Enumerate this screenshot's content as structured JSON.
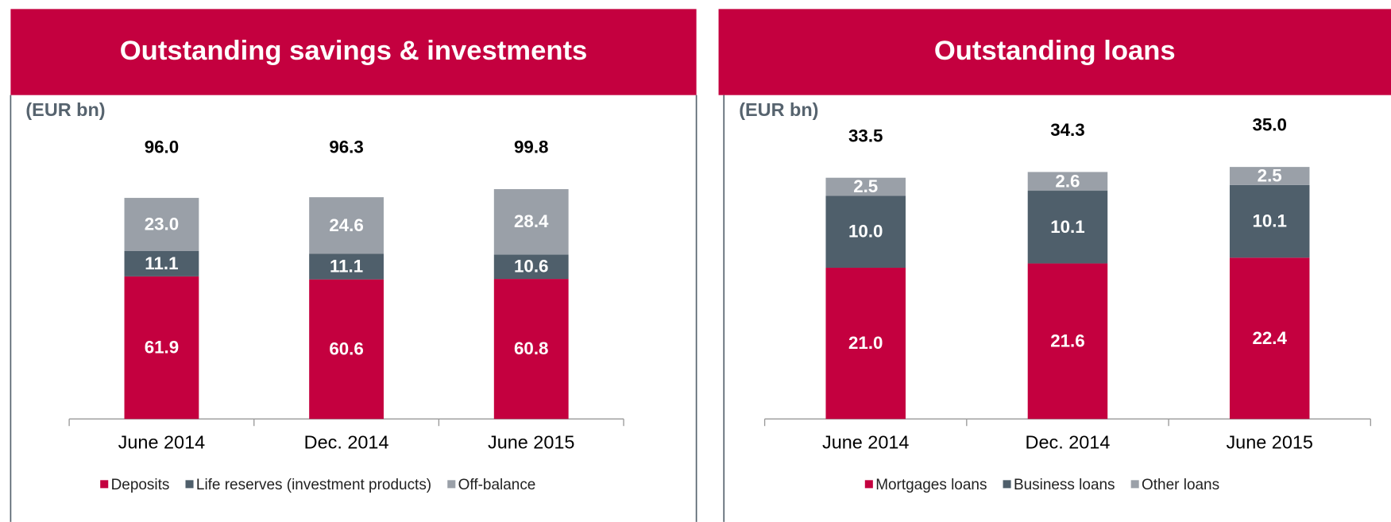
{
  "chart_data": [
    {
      "type": "stacked_bar",
      "title": "Outstanding savings & investments",
      "unit": "(EUR bn)",
      "categories": [
        "June 2014",
        "Dec. 2014",
        "June 2015"
      ],
      "series": [
        {
          "name": "Deposits",
          "color": "#c4003f",
          "values": [
            61.9,
            60.6,
            60.8
          ],
          "value_labels": [
            "61.9",
            "60.6",
            "60.8"
          ]
        },
        {
          "name": "Life reserves (investment products)",
          "color": "#4f5f6b",
          "values": [
            11.1,
            11.1,
            10.6
          ],
          "value_labels": [
            "11.1",
            "11.1",
            "10.6"
          ]
        },
        {
          "name": "Off-balance",
          "color": "#9aa0a8",
          "values": [
            23.0,
            24.6,
            28.4
          ],
          "value_labels": [
            "23.0",
            "24.6",
            "28.4"
          ]
        }
      ],
      "totals": [
        96.0,
        96.3,
        99.8
      ],
      "total_labels": [
        "96.0",
        "96.3",
        "99.8"
      ]
    },
    {
      "type": "stacked_bar",
      "title": "Outstanding loans",
      "unit": "(EUR bn)",
      "categories": [
        "June 2014",
        "Dec. 2014",
        "June 2015"
      ],
      "series": [
        {
          "name": "Mortgages loans",
          "color": "#c4003f",
          "values": [
            21.0,
            21.6,
            22.4
          ],
          "value_labels": [
            "21.0",
            "21.6",
            "22.4"
          ]
        },
        {
          "name": "Business loans",
          "color": "#4f5f6b",
          "values": [
            10.0,
            10.1,
            10.1
          ],
          "value_labels": [
            "10.0",
            "10.1",
            "10.1"
          ]
        },
        {
          "name": "Other loans",
          "color": "#9aa0a8",
          "values": [
            2.5,
            2.6,
            2.5
          ],
          "value_labels": [
            "2.5",
            "2.6",
            "2.5"
          ]
        }
      ],
      "totals": [
        33.5,
        34.3,
        35.0
      ],
      "total_labels": [
        "33.5",
        "34.3",
        "35.0"
      ]
    }
  ]
}
